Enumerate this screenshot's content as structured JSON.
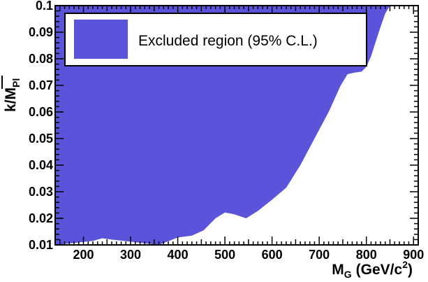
{
  "chart_data": {
    "type": "area",
    "x_range": [
      140,
      910
    ],
    "y_range": [
      0.01,
      0.1
    ],
    "x_ticks": [
      "200",
      "300",
      "400",
      "500",
      "600",
      "700",
      "800",
      "900"
    ],
    "y_ticks": [
      "0.01",
      "0.02",
      "0.03",
      "0.04",
      "0.05",
      "0.06",
      "0.07",
      "0.08",
      "0.09",
      "0.1"
    ],
    "xlabel": {
      "main": "M",
      "sub": "G",
      "units": "(GeV/c",
      "sup": "2",
      "close": ")"
    },
    "ylabel": {
      "main": "k/",
      "bar": "M",
      "sub": "Pl"
    },
    "grid": false,
    "legend": {
      "placement": "top-left",
      "entries": [
        "Excluded region (95% C.L.)"
      ]
    },
    "colors": {
      "fill": "#5b54db",
      "axis": "#000000",
      "background": "#ffffff"
    },
    "boundary": {
      "name": "Excluded region (95% C.L.)",
      "x": [
        140,
        220,
        240,
        260,
        300,
        330,
        360,
        400,
        430,
        455,
        480,
        500,
        520,
        545,
        570,
        600,
        630,
        660,
        690,
        720,
        745,
        760,
        775,
        790,
        800,
        810,
        820,
        830,
        840,
        850
      ],
      "y": [
        0.01,
        0.0115,
        0.0125,
        0.012,
        0.0112,
        0.0106,
        0.01,
        0.0128,
        0.0135,
        0.0155,
        0.02,
        0.0222,
        0.0215,
        0.02,
        0.0228,
        0.027,
        0.0315,
        0.04,
        0.05,
        0.06,
        0.0698,
        0.0742,
        0.0748,
        0.0752,
        0.077,
        0.081,
        0.0865,
        0.092,
        0.097,
        0.1
      ]
    }
  }
}
